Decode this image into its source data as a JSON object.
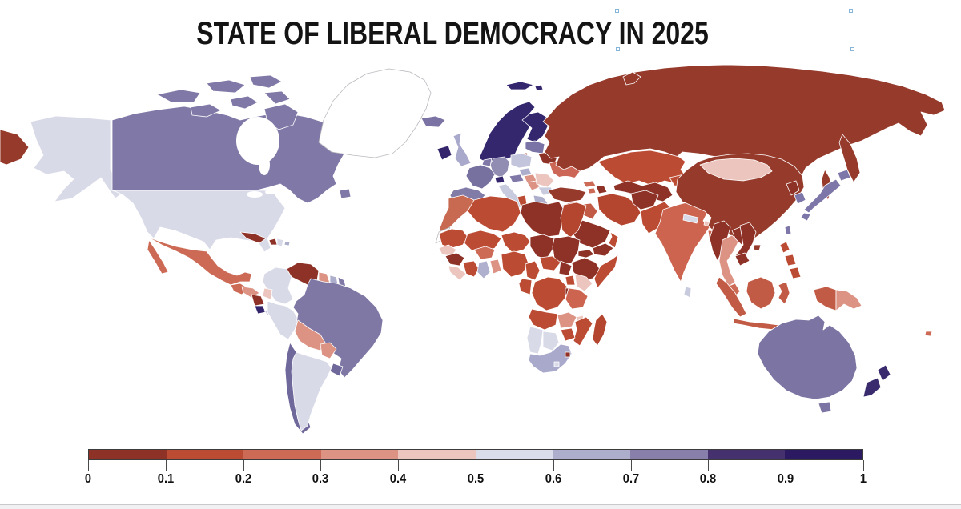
{
  "title": "STATE OF LIBERAL DEMOCRACY IN 2025",
  "legend": {
    "ticks": [
      "0",
      "0.1",
      "0.2",
      "0.3",
      "0.4",
      "0.5",
      "0.6",
      "0.7",
      "0.8",
      "0.9",
      "1"
    ],
    "bin_colors": [
      "#8E3126",
      "#BC4B33",
      "#CC6A55",
      "#DC9384",
      "#ECC6BE",
      "#DADCEA",
      "#ACAECC",
      "#8880AB",
      "#46316F",
      "#2B1A62"
    ]
  },
  "chart_data": {
    "type": "choropleth",
    "title": "STATE OF LIBERAL DEMOCRACY IN 2025",
    "scale": {
      "min": 0,
      "max": 1,
      "ticks": [
        0,
        0.1,
        0.2,
        0.3,
        0.4,
        0.5,
        0.6,
        0.7,
        0.8,
        0.9,
        1
      ]
    },
    "regions": {
      "russia": {
        "label": "Russia",
        "bin": "0-0.1",
        "color": "#963B2C"
      },
      "china": {
        "label": "China",
        "bin": "0-0.1",
        "color": "#963B2C"
      },
      "turkey": {
        "label": "Turkey",
        "bin": "0-0.1",
        "color": "#963B2C"
      },
      "venezuela": {
        "label": "Venezuela",
        "bin": "0-0.1",
        "color": "#8E3126"
      },
      "cuba": {
        "label": "Cuba",
        "bin": "0-0.1",
        "color": "#8E3126"
      },
      "haiti": {
        "label": "Haiti",
        "bin": "0-0.1",
        "color": "#8E3126"
      },
      "nicaragua": {
        "label": "Nicaragua",
        "bin": "0-0.1",
        "color": "#8E3126"
      },
      "guinea": {
        "label": "Guinea",
        "bin": "0-0.1",
        "color": "#8E3126"
      },
      "belarus": {
        "label": "Belarus",
        "bin": "0-0.1",
        "color": "#8E3126"
      },
      "kaliningrad": {
        "label": "Kaliningrad (Russia)",
        "bin": "0-0.1",
        "color": "#963B2C"
      },
      "libya": {
        "label": "Libya",
        "bin": "0-0.1",
        "color": "#8E3126"
      },
      "chad": {
        "label": "Chad",
        "bin": "0-0.1",
        "color": "#8E3126"
      },
      "sudan": {
        "label": "Sudan",
        "bin": "0-0.1",
        "color": "#8E3126"
      },
      "south-sudan": {
        "label": "South Sudan",
        "bin": "0-0.1",
        "color": "#8E3126"
      },
      "eritrea": {
        "label": "Eritrea",
        "bin": "0-0.1",
        "color": "#8E3126"
      },
      "ethiopia": {
        "label": "Ethiopia",
        "bin": "0-0.1",
        "color": "#8E3126"
      },
      "rwanda-burundi": {
        "label": "Rwanda/Burundi",
        "bin": "0-0.1",
        "color": "#8E3126"
      },
      "eswatini": {
        "label": "Eswatini",
        "bin": "0-0.1",
        "color": "#8E3126"
      },
      "syria": {
        "label": "Syria",
        "bin": "0-0.1",
        "color": "#8E3126"
      },
      "jordan": {
        "label": "Jordan",
        "bin": "0-0.1",
        "color": "#8E3126"
      },
      "saudi-arabia": {
        "label": "Saudi Arabia",
        "bin": "0-0.1",
        "color": "#8E3126"
      },
      "yemen": {
        "label": "Yemen",
        "bin": "0-0.1",
        "color": "#8E3126"
      },
      "afghanistan": {
        "label": "Afghanistan",
        "bin": "0-0.1",
        "color": "#8E3126"
      },
      "uzbekistan-turkmenistan": {
        "label": "Uzbekistan/Turkmenistan",
        "bin": "0-0.1",
        "color": "#8E3126"
      },
      "azerbaijan": {
        "label": "Azerbaijan",
        "bin": "0-0.1",
        "color": "#8E3126"
      },
      "myanmar": {
        "label": "Myanmar",
        "bin": "0-0.1",
        "color": "#8E3126"
      },
      "laos": {
        "label": "Laos",
        "bin": "0-0.1",
        "color": "#8E3126"
      },
      "vietnam": {
        "label": "Vietnam",
        "bin": "0-0.1",
        "color": "#8E3126"
      },
      "cambodia": {
        "label": "Cambodia",
        "bin": "0-0.1",
        "color": "#8E3126"
      },
      "north-korea": {
        "label": "North Korea",
        "bin": "0-0.1",
        "color": "#8E3126"
      },
      "kazakhstan": {
        "label": "Kazakhstan",
        "bin": "0.1-0.2",
        "color": "#BC4B33"
      },
      "iran": {
        "label": "Iran",
        "bin": "0.1-0.2",
        "color": "#B4452F"
      },
      "egypt": {
        "label": "Egypt",
        "bin": "0.1-0.2",
        "color": "#B4452F"
      },
      "algeria": {
        "label": "Algeria",
        "bin": "0.1-0.2",
        "color": "#BC4B33"
      },
      "tunisia": {
        "label": "Tunisia",
        "bin": "0.1-0.2",
        "color": "#BC4B33"
      },
      "mauritania": {
        "label": "Mauritania",
        "bin": "0.1-0.2",
        "color": "#BC4B33"
      },
      "mali": {
        "label": "Mali",
        "bin": "0.1-0.2",
        "color": "#BC4B33"
      },
      "niger": {
        "label": "Niger",
        "bin": "0.1-0.2",
        "color": "#BC4B33"
      },
      "nigeria": {
        "label": "Nigeria",
        "bin": "0.1-0.2",
        "color": "#BC4B33"
      },
      "cameroon": {
        "label": "Cameroon",
        "bin": "0.1-0.2",
        "color": "#BC4B33"
      },
      "central-african-republic": {
        "label": "Central African Republic",
        "bin": "0.1-0.2",
        "color": "#BC4B33"
      },
      "dr-congo": {
        "label": "DR Congo",
        "bin": "0.1-0.2",
        "color": "#BC4B33"
      },
      "congo-gabon": {
        "label": "Congo/Gabon",
        "bin": "0.1-0.2",
        "color": "#BC4B33"
      },
      "angola": {
        "label": "Angola",
        "bin": "0.1-0.2",
        "color": "#BC4B33"
      },
      "zimbabwe": {
        "label": "Zimbabwe",
        "bin": "0.1-0.2",
        "color": "#BC4B33"
      },
      "mozambique": {
        "label": "Mozambique",
        "bin": "0.1-0.2",
        "color": "#BC4B33"
      },
      "madagascar": {
        "label": "Madagascar",
        "bin": "0.1-0.2",
        "color": "#B4452F"
      },
      "somalia": {
        "label": "Somalia",
        "bin": "0.1-0.2",
        "color": "#BC4B33"
      },
      "uganda": {
        "label": "Uganda",
        "bin": "0.1-0.2",
        "color": "#BC4B33"
      },
      "ivory-coast": {
        "label": "Ivory Coast",
        "bin": "0.1-0.2",
        "color": "#BC4B33"
      },
      "pakistan": {
        "label": "Pakistan",
        "bin": "0.1-0.2",
        "color": "#BC4B33"
      },
      "kyrgyzstan": {
        "label": "Kyrgyzstan/Tajikistan",
        "bin": "0.1-0.2",
        "color": "#BC4B33"
      },
      "philippines": {
        "label": "Philippines",
        "bin": "0.1-0.2",
        "color": "#BC4B33"
      },
      "oman": {
        "label": "Oman",
        "bin": "0.1-0.2",
        "color": "#BC4B33"
      },
      "mexico": {
        "label": "Mexico",
        "bin": "0.2-0.3",
        "color": "#CC6A55"
      },
      "guatemala": {
        "label": "Guatemala",
        "bin": "0.2-0.3",
        "color": "#CC6A55"
      },
      "morocco": {
        "label": "Morocco",
        "bin": "0.2-0.3",
        "color": "#C86A52"
      },
      "india": {
        "label": "India",
        "bin": "0.2-0.3",
        "color": "#CC6450"
      },
      "bangladesh": {
        "label": "Bangladesh",
        "bin": "0.2-0.3",
        "color": "#CC6450"
      },
      "indonesia": {
        "label": "Indonesia",
        "bin": "0.2-0.3",
        "color": "#C25B45"
      },
      "tanzania": {
        "label": "Tanzania",
        "bin": "0.2-0.3",
        "color": "#CC6450"
      },
      "iraq": {
        "label": "Iraq",
        "bin": "0.2-0.3",
        "color": "#C25B45"
      },
      "ukraine": {
        "label": "Ukraine",
        "bin": "0.2-0.3",
        "color": "#CC6757"
      },
      "georgia": {
        "label": "Georgia",
        "bin": "0.2-0.3",
        "color": "#CC6A55"
      },
      "armenia": {
        "label": "Armenia",
        "bin": "0.2-0.3",
        "color": "#CC6A55"
      },
      "malaysia": {
        "label": "Malaysia",
        "bin": "0.2-0.3",
        "color": "#CC6A55"
      },
      "burkina-faso": {
        "label": "Burkina Faso",
        "bin": "0.2-0.3",
        "color": "#CC6A55"
      },
      "fiji": {
        "label": "Fiji",
        "bin": "0.2-0.3",
        "color": "#CC6A55"
      },
      "honduras": {
        "label": "Honduras",
        "bin": "0.3-0.4",
        "color": "#DC9384"
      },
      "bolivia": {
        "label": "Bolivia",
        "bin": "0.3-0.4",
        "color": "#DC9384"
      },
      "paraguay": {
        "label": "Paraguay",
        "bin": "0.3-0.4",
        "color": "#DC9384"
      },
      "guyana": {
        "label": "Guyana",
        "bin": "0.3-0.4",
        "color": "#DC9384"
      },
      "thailand": {
        "label": "Thailand",
        "bin": "0.3-0.4",
        "color": "#DC9384"
      },
      "papua-new-guinea": {
        "label": "Papua New Guinea",
        "bin": "0.3-0.4",
        "color": "#DC9384"
      },
      "zambia": {
        "label": "Zambia",
        "bin": "0.3-0.4",
        "color": "#DC9384"
      },
      "togo-benin": {
        "label": "Togo/Benin",
        "bin": "0.3-0.4",
        "color": "#DC9384"
      },
      "serbia": {
        "label": "Serbia",
        "bin": "0.3-0.4",
        "color": "#DC9384"
      },
      "hungary": {
        "label": "Hungary",
        "bin": "0.3-0.4",
        "color": "#DC9384"
      },
      "mongolia": {
        "label": "Mongolia",
        "bin": "0.4-0.5",
        "color": "#ECC6BE"
      },
      "kenya": {
        "label": "Kenya",
        "bin": "0.4-0.5",
        "color": "#ECC6BE"
      },
      "senegal": {
        "label": "Senegal",
        "bin": "0.4-0.5",
        "color": "#ECC6BE"
      },
      "sierra-leone-liberia": {
        "label": "Sierra Leone/Liberia",
        "bin": "0.4-0.5",
        "color": "#ECC6BE"
      },
      "malawi": {
        "label": "Malawi",
        "bin": "0.4-0.5",
        "color": "#ECC6BE"
      },
      "romania": {
        "label": "Romania",
        "bin": "0.4-0.5",
        "color": "#ECC6BE"
      },
      "ecuador": {
        "label": "Ecuador",
        "bin": "0.4-0.5",
        "color": "#ECC6BE"
      },
      "bhutan": {
        "label": "Bhutan",
        "bin": "0.4-0.5",
        "color": "#ECC6BE"
      },
      "usa": {
        "label": "United States",
        "bin": "0.5-0.6",
        "color": "#D8DAE8"
      },
      "alaska": {
        "label": "Alaska (USA)",
        "bin": "0.5-0.6",
        "color": "#D8DAE8"
      },
      "colombia": {
        "label": "Colombia",
        "bin": "0.5-0.6",
        "color": "#D8DAE8"
      },
      "peru": {
        "label": "Peru",
        "bin": "0.5-0.6",
        "color": "#D8DAE8"
      },
      "argentina": {
        "label": "Argentina",
        "bin": "0.5-0.6",
        "color": "#D8DAE8"
      },
      "namibia": {
        "label": "Namibia",
        "bin": "0.5-0.6",
        "color": "#D8DAE8"
      },
      "botswana": {
        "label": "Botswana",
        "bin": "0.5-0.6",
        "color": "#D8DAE8"
      },
      "italy": {
        "label": "Italy",
        "bin": "0.5-0.6",
        "color": "#C8CADD"
      },
      "poland": {
        "label": "Poland",
        "bin": "0.5-0.6",
        "color": "#C3C5DC"
      },
      "nepal": {
        "label": "Nepal",
        "bin": "0.5-0.6",
        "color": "#D8DAE8"
      },
      "sri-lanka": {
        "label": "Sri Lanka",
        "bin": "0.5-0.6",
        "color": "#C8CADD"
      },
      "israel": {
        "label": "Israel/Lebanon",
        "bin": "0.5-0.6",
        "color": "#C8CADD"
      },
      "dominican-republic": {
        "label": "Dominican Republic",
        "bin": "0.5-0.6",
        "color": "#D8DAE8"
      },
      "panama": {
        "label": "Panama",
        "bin": "0.5-0.6",
        "color": "#C8CADD"
      },
      "bulgaria": {
        "label": "Bulgaria",
        "bin": "0.5-0.6",
        "color": "#C8CADD"
      },
      "lesotho": {
        "label": "Lesotho",
        "bin": "0.5-0.6",
        "color": "#D8DAE8"
      },
      "uk": {
        "label": "United Kingdom",
        "bin": "0.6-0.7",
        "color": "#A9A9CB"
      },
      "greece": {
        "label": "Greece",
        "bin": "0.6-0.7",
        "color": "#ACAECC"
      },
      "czechia": {
        "label": "Czechia",
        "bin": "0.6-0.7",
        "color": "#ACAECC"
      },
      "ghana": {
        "label": "Ghana",
        "bin": "0.6-0.7",
        "color": "#AEB0CD"
      },
      "suriname": {
        "label": "Suriname",
        "bin": "0.6-0.7",
        "color": "#ACAECC"
      },
      "south-africa": {
        "label": "South Africa",
        "bin": "0.6-0.7",
        "color": "#A9A9CB"
      },
      "puerto-rico": {
        "label": "Puerto Rico",
        "bin": "0.6-0.7",
        "color": "#ACAECC"
      },
      "canada": {
        "label": "Canada",
        "bin": "0.7-0.8",
        "color": "#8079A7"
      },
      "brazil": {
        "label": "Brazil",
        "bin": "0.7-0.8",
        "color": "#7F78A5"
      },
      "australia": {
        "label": "Australia",
        "bin": "0.7-0.8",
        "color": "#7C74A3"
      },
      "france": {
        "label": "France",
        "bin": "0.7-0.8",
        "color": "#77719F"
      },
      "spain-portugal": {
        "label": "Spain/Portugal",
        "bin": "0.7-0.8",
        "color": "#817BA8"
      },
      "germany": {
        "label": "Germany",
        "bin": "0.7-0.8",
        "color": "#908CB2"
      },
      "benelux": {
        "label": "Netherlands/Belgium",
        "bin": "0.7-0.8",
        "color": "#8079A7"
      },
      "austria": {
        "label": "Austria",
        "bin": "0.7-0.8",
        "color": "#8079A7"
      },
      "japan": {
        "label": "Japan",
        "bin": "0.7-0.8",
        "color": "#7D76A8"
      },
      "south-korea": {
        "label": "South Korea",
        "bin": "0.7-0.8",
        "color": "#7D76A8"
      },
      "taiwan": {
        "label": "Taiwan",
        "bin": "0.7-0.8",
        "color": "#7D76A8"
      },
      "iceland": {
        "label": "Iceland",
        "bin": "0.7-0.8",
        "color": "#7A73A4"
      },
      "baltic-states": {
        "label": "Baltic states",
        "bin": "0.7-0.8",
        "color": "#7A74A6"
      },
      "french-guiana": {
        "label": "French Guiana",
        "bin": "0.7-0.8",
        "color": "#8079A7"
      },
      "chile": {
        "label": "Chile",
        "bin": "0.7-0.8",
        "color": "#6F689B"
      },
      "uruguay": {
        "label": "Uruguay",
        "bin": "0.7-0.8",
        "color": "#6F689B"
      },
      "new-zealand": {
        "label": "New Zealand",
        "bin": "0.8-0.9",
        "color": "#3A2B6E"
      },
      "scandinavia": {
        "label": "Norway/Sweden",
        "bin": "0.9-1",
        "color": "#35276E"
      },
      "finland": {
        "label": "Finland",
        "bin": "0.9-1",
        "color": "#35276E"
      },
      "svalbard": {
        "label": "Svalbard",
        "bin": "0.9-1",
        "color": "#35276E"
      },
      "denmark": {
        "label": "Denmark",
        "bin": "0.9-1",
        "color": "#35276E"
      },
      "ireland": {
        "label": "Ireland",
        "bin": "0.9-1",
        "color": "#33246B"
      },
      "switzerland": {
        "label": "Switzerland",
        "bin": "0.9-1",
        "color": "#33246B"
      },
      "costa-rica": {
        "label": "Costa Rica",
        "bin": "0.9-1",
        "color": "#33246B"
      },
      "greenland": {
        "label": "Greenland (no data)",
        "bin": "no data",
        "color": "#FFFFFF"
      },
      "western-sahara": {
        "label": "Western Sahara (no data)",
        "bin": "no data",
        "color": "#FFFFFF"
      }
    }
  }
}
